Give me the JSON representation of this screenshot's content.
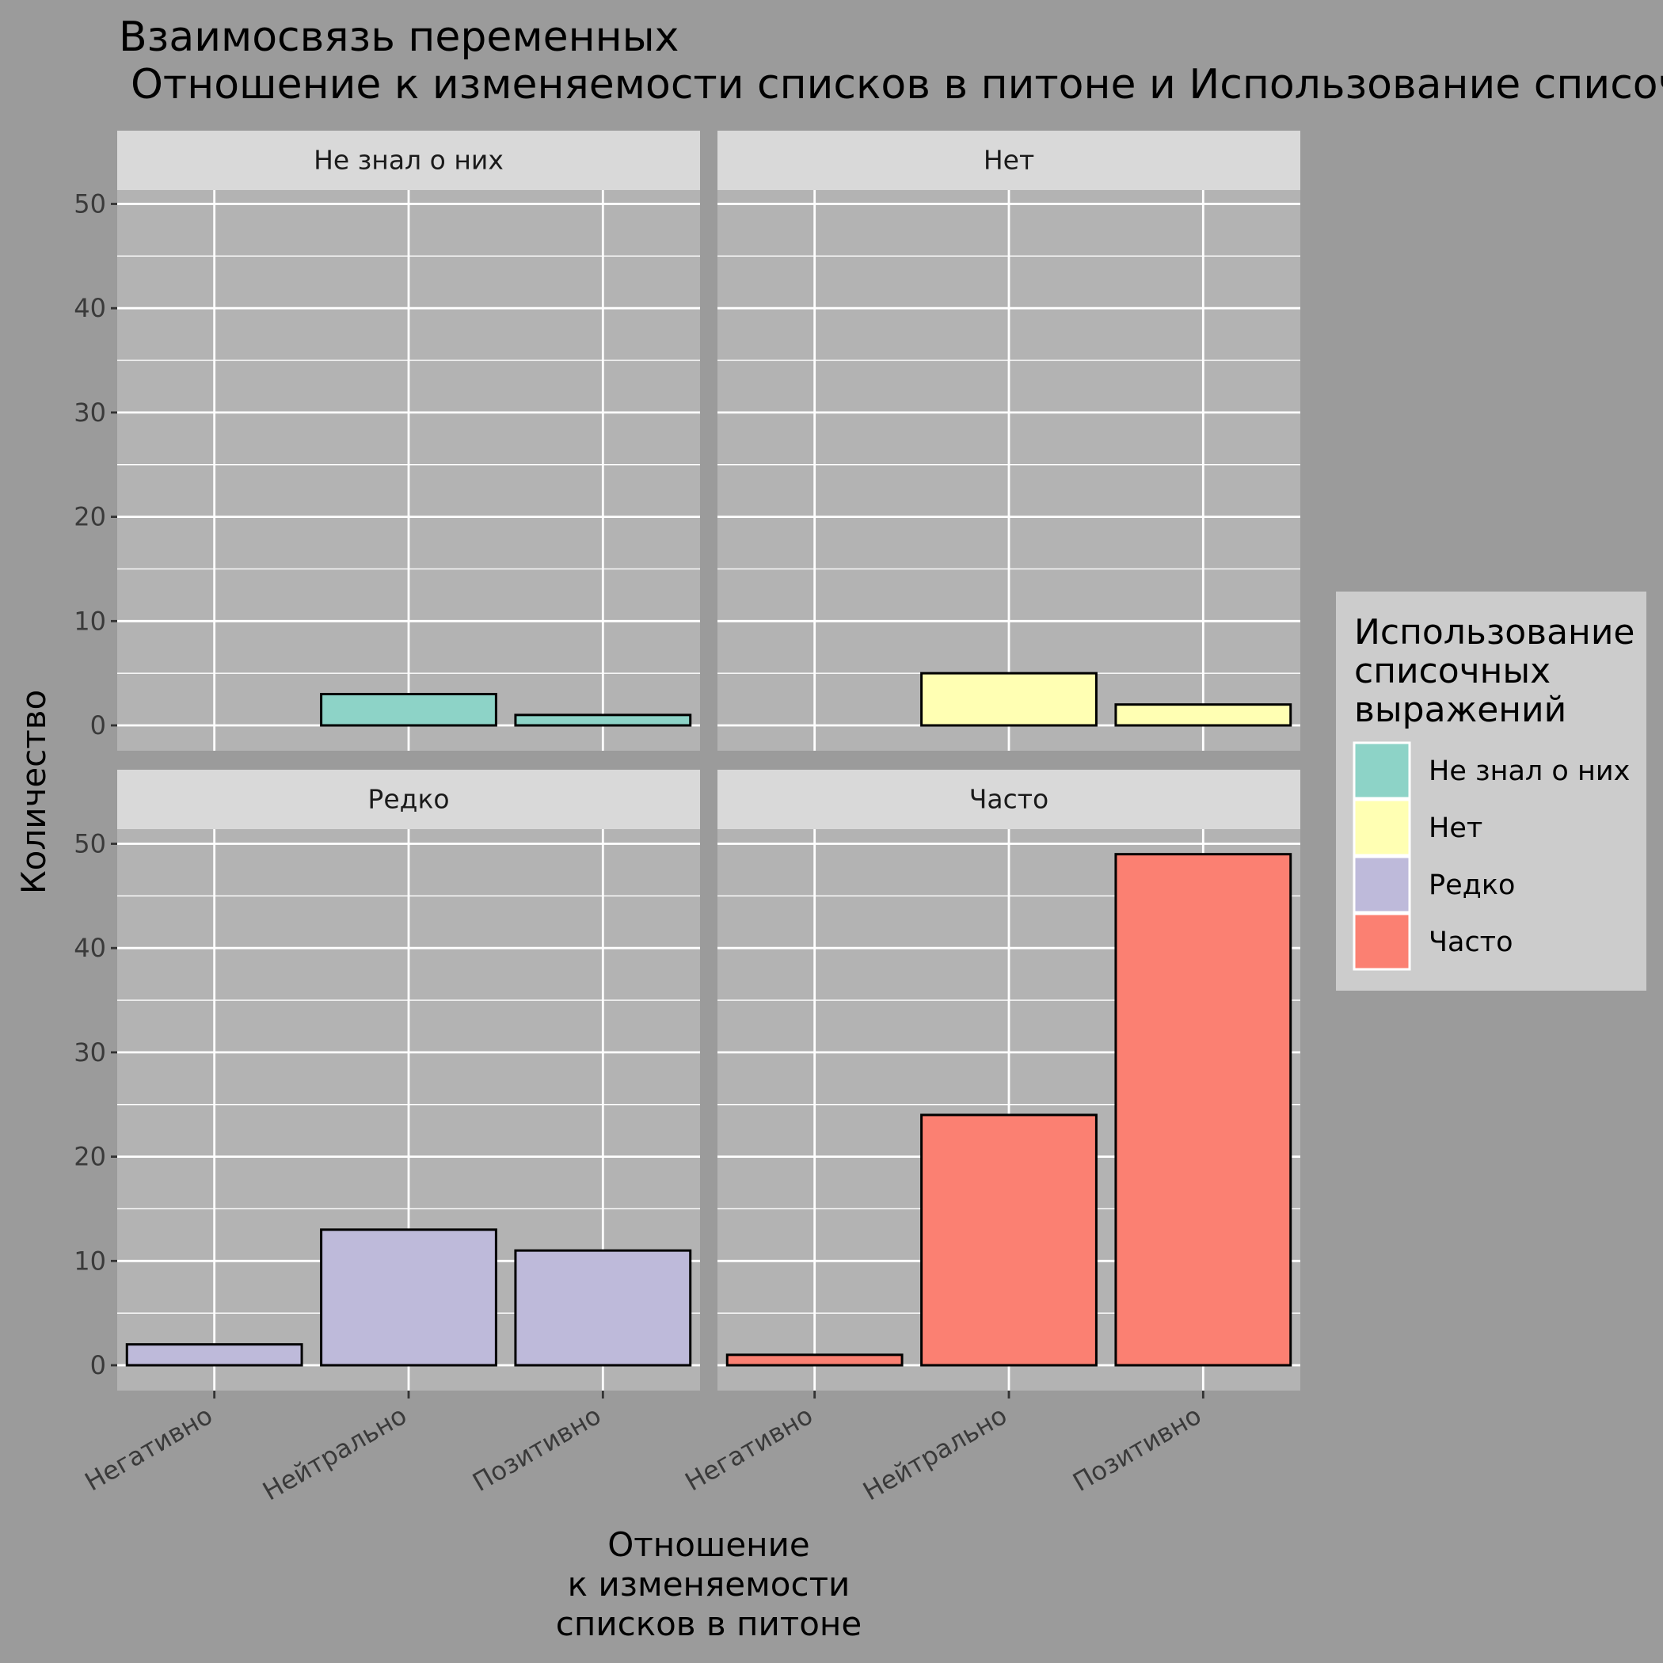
{
  "chart_data": {
    "type": "bar",
    "title_line1": "Взаимосвязь переменных",
    "title_line2": "Отношение к изменяемости списков в питоне и Использование списочн",
    "xlabel_lines": [
      "Отношение",
      "к изменяемости",
      "списков в питоне"
    ],
    "ylabel": "Количество",
    "categories": [
      "Негативно",
      "Нейтрально",
      "Позитивно"
    ],
    "ylim": [
      0,
      55
    ],
    "yticks": [
      0,
      10,
      20,
      30,
      40,
      50
    ],
    "grid": true,
    "facet_layout": "2x2",
    "panels": [
      {
        "name": "Не знал о них",
        "color": "#8dd3c7",
        "values": [
          0,
          3,
          1
        ]
      },
      {
        "name": "Нет",
        "color": "#ffffb3",
        "values": [
          0,
          5,
          2
        ]
      },
      {
        "name": "Редко",
        "color": "#bebada",
        "values": [
          2,
          13,
          11
        ]
      },
      {
        "name": "Часто",
        "color": "#fb8072",
        "values": [
          1,
          24,
          49
        ]
      }
    ],
    "legend": {
      "title_lines": [
        "Использование",
        "списочных",
        "выражений"
      ],
      "placement": "right",
      "items": [
        {
          "label": "Не знал о них",
          "color": "#8dd3c7"
        },
        {
          "label": "Нет",
          "color": "#ffffb3"
        },
        {
          "label": "Редко",
          "color": "#bebada"
        },
        {
          "label": "Часто",
          "color": "#fb8072"
        }
      ]
    }
  }
}
